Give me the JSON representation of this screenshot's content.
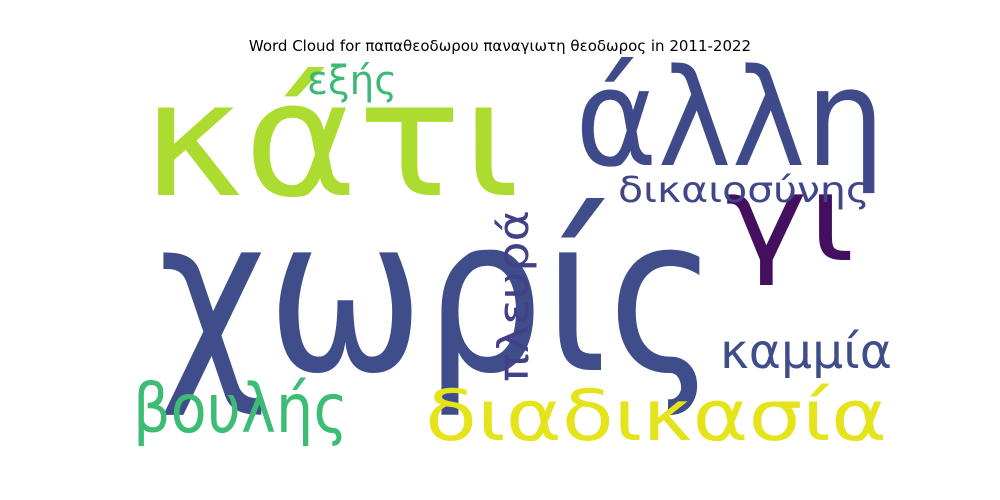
{
  "title": "Word Cloud for παπαθεοδωρου παναγιωτη θεοδωρος in 2011-2022",
  "words": [
    {
      "id": "xoris",
      "text": "χωρίς",
      "color": "#3f4d8b"
    },
    {
      "id": "kati",
      "text": "κάτι",
      "color": "#addc30"
    },
    {
      "id": "alli",
      "text": "άλλη",
      "color": "#3e4a89"
    },
    {
      "id": "diadikasia",
      "text": "διαδικασία",
      "color": "#e5e31a"
    },
    {
      "id": "gi",
      "text": "γι",
      "color": "#440f5f"
    },
    {
      "id": "voulis",
      "text": "βουλής",
      "color": "#3cbc74"
    },
    {
      "id": "kammia",
      "text": "καμμία",
      "color": "#3f4e8a"
    },
    {
      "id": "dikaiosynis",
      "text": "δικαιοσύνης",
      "color": "#404688"
    },
    {
      "id": "plevra",
      "text": "πλευρά",
      "color": "#424086"
    },
    {
      "id": "exis",
      "text": "εξής",
      "color": "#3bba75"
    }
  ]
}
